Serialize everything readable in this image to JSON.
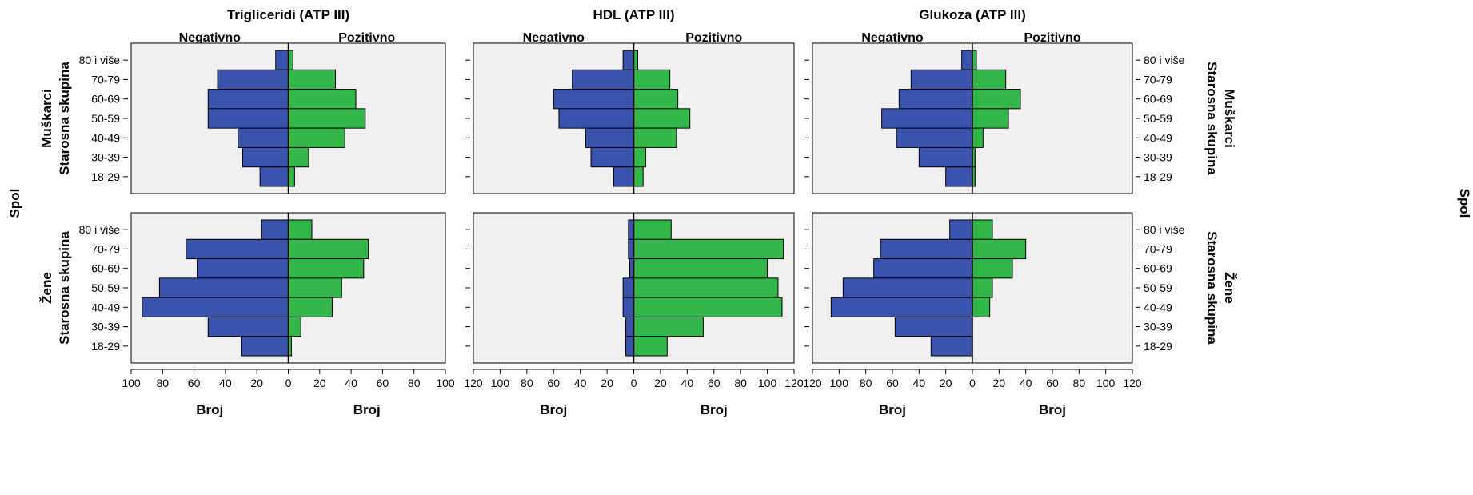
{
  "chart_data": {
    "type": "bar",
    "subtype": "population-pyramid-grid",
    "row_variable_label": "Spol",
    "category_axis_label": "Starosna skupina",
    "count_axis_label": "Broj",
    "side_labels": {
      "negative": "Negativno",
      "positive": "Pozitivno"
    },
    "rows": [
      "Muškarci",
      "Žene"
    ],
    "categories": [
      "80 i više",
      "70-79",
      "60-69",
      "50-59",
      "40-49",
      "30-39",
      "18-29"
    ],
    "colors": {
      "negative": "#3a54ae",
      "positive": "#33b74a",
      "panel_bg": "#f0f0f0"
    },
    "panels": [
      {
        "title": "Trigliceridi (ATP III)",
        "xlim": 100,
        "ticks": [
          "100",
          "80",
          "60",
          "40",
          "20",
          "0",
          "20",
          "40",
          "60",
          "80",
          "100"
        ],
        "tick_values": [
          -100,
          -80,
          -60,
          -40,
          -20,
          0,
          20,
          40,
          60,
          80,
          100
        ],
        "rows": [
          {
            "row": "Muškarci",
            "negative": [
              8,
              45,
              51,
              51,
              32,
              29,
              18
            ],
            "positive": [
              3,
              30,
              43,
              49,
              36,
              13,
              4
            ]
          },
          {
            "row": "Žene",
            "negative": [
              17,
              65,
              58,
              82,
              93,
              51,
              30
            ],
            "positive": [
              15,
              51,
              48,
              34,
              28,
              8,
              2
            ]
          }
        ]
      },
      {
        "title": "HDL (ATP III)",
        "xlim": 120,
        "ticks": [
          "120",
          "100",
          "80",
          "60",
          "40",
          "20",
          "0",
          "20",
          "40",
          "60",
          "80",
          "100",
          "120"
        ],
        "tick_values": [
          -120,
          -100,
          -80,
          -60,
          -40,
          -20,
          0,
          20,
          40,
          60,
          80,
          100,
          120
        ],
        "rows": [
          {
            "row": "Muškarci",
            "negative": [
              8,
              46,
              60,
              56,
              36,
              32,
              15
            ],
            "positive": [
              3,
              27,
              33,
              42,
              32,
              9,
              7
            ]
          },
          {
            "row": "Žene",
            "negative": [
              4,
              4,
              3,
              8,
              8,
              6,
              6
            ],
            "positive": [
              28,
              112,
              100,
              108,
              111,
              52,
              25
            ]
          }
        ]
      },
      {
        "title": "Glukoza (ATP III)",
        "xlim": 120,
        "ticks": [
          "120",
          "100",
          "80",
          "60",
          "40",
          "20",
          "0",
          "20",
          "40",
          "60",
          "80",
          "100",
          "120"
        ],
        "tick_values": [
          -120,
          -100,
          -80,
          -60,
          -40,
          -20,
          0,
          20,
          40,
          60,
          80,
          100,
          120
        ],
        "rows": [
          {
            "row": "Muškarci",
            "negative": [
              8,
              46,
              55,
              68,
              57,
              40,
              20
            ],
            "positive": [
              3,
              25,
              36,
              27,
              8,
              2,
              2
            ]
          },
          {
            "row": "Žene",
            "negative": [
              17,
              69,
              74,
              97,
              106,
              58,
              31
            ],
            "positive": [
              15,
              40,
              30,
              15,
              13,
              0,
              0
            ]
          }
        ]
      }
    ]
  }
}
